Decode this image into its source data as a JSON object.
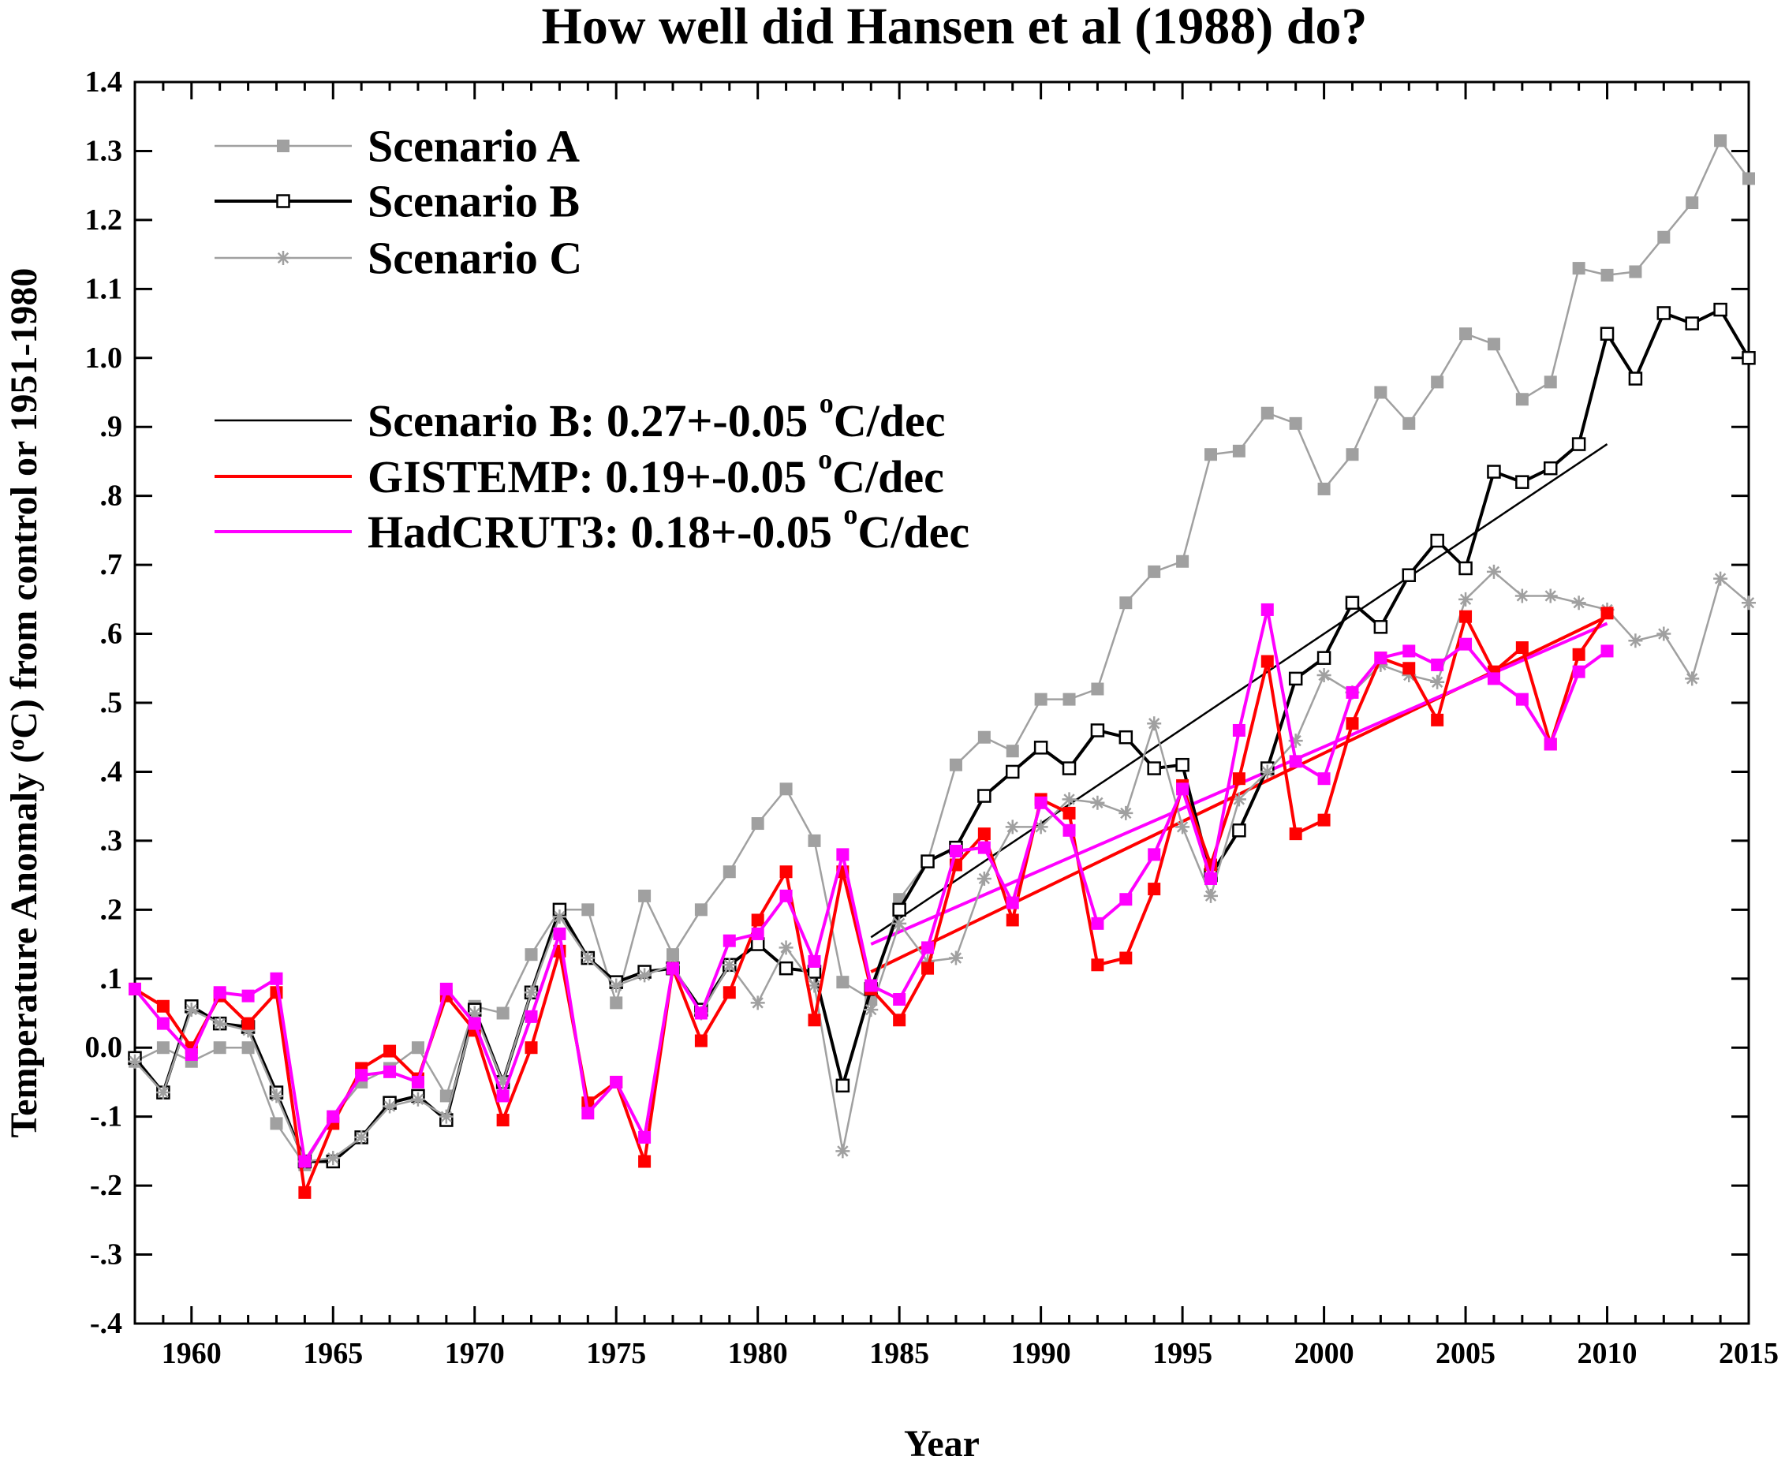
{
  "chart_data": {
    "type": "line",
    "title": "How well did Hansen et al (1988) do?",
    "xlabel": "Year",
    "ylabel_parts": [
      "Temperature Anomaly (",
      "o",
      "C) from control or 1951-1980"
    ],
    "xlim": [
      1958,
      2015
    ],
    "ylim": [
      -0.4,
      1.4
    ],
    "x_ticks": [
      1960,
      1965,
      1970,
      1975,
      1980,
      1985,
      1990,
      1995,
      2000,
      2005,
      2010,
      2015
    ],
    "x_tick_labels": [
      "1960",
      "1965",
      "1970",
      "1975",
      "1980",
      "1985",
      "1990",
      "1995",
      "2000",
      "2005",
      "2010",
      "2015"
    ],
    "y_ticks": [
      -0.4,
      -0.3,
      -0.2,
      -0.1,
      0.0,
      0.1,
      0.2,
      0.3,
      0.4,
      0.5,
      0.6,
      0.7,
      0.8,
      0.9,
      1.0,
      1.1,
      1.2,
      1.3,
      1.4
    ],
    "y_tick_labels": [
      "-.4",
      "-.3",
      "-.2",
      "-.1",
      "0.0",
      ".1",
      ".2",
      ".3",
      ".4",
      ".5",
      ".6",
      ".7",
      ".8",
      ".9",
      "1.0",
      "1.1",
      "1.2",
      "1.3",
      "1.4"
    ],
    "grid": false,
    "legend_position": "top-left",
    "series": [
      {
        "name": "Scenario A",
        "color": "#a0a0a0",
        "marker": "filled-square",
        "x": [
          1958,
          1959,
          1960,
          1961,
          1962,
          1963,
          1964,
          1965,
          1966,
          1967,
          1968,
          1969,
          1970,
          1971,
          1972,
          1973,
          1974,
          1975,
          1976,
          1977,
          1978,
          1979,
          1980,
          1981,
          1982,
          1983,
          1984,
          1985,
          1986,
          1987,
          1988,
          1989,
          1990,
          1991,
          1992,
          1993,
          1994,
          1995,
          1996,
          1997,
          1998,
          1999,
          2000,
          2001,
          2002,
          2003,
          2004,
          2005,
          2006,
          2007,
          2008,
          2009,
          2010,
          2011,
          2012,
          2013,
          2014,
          2015
        ],
        "y": [
          -0.02,
          0.0,
          -0.02,
          0.0,
          0.0,
          -0.11,
          -0.17,
          -0.1,
          -0.05,
          -0.03,
          0.0,
          -0.07,
          0.06,
          0.05,
          0.135,
          0.2,
          0.2,
          0.065,
          0.22,
          0.135,
          0.2,
          0.255,
          0.325,
          0.375,
          0.3,
          0.095,
          0.07,
          0.215,
          0.27,
          0.41,
          0.45,
          0.43,
          0.505,
          0.505,
          0.52,
          0.645,
          0.69,
          0.705,
          0.86,
          0.865,
          0.92,
          0.905,
          0.81,
          0.86,
          0.95,
          0.905,
          0.965,
          1.035,
          1.02,
          0.94,
          0.965,
          1.13,
          1.12,
          1.125,
          1.175,
          1.225,
          1.315,
          1.26
        ]
      },
      {
        "name": "Scenario B",
        "color": "#000000",
        "marker": "open-square",
        "x": [
          1958,
          1959,
          1960,
          1961,
          1962,
          1963,
          1964,
          1965,
          1966,
          1967,
          1968,
          1969,
          1970,
          1971,
          1972,
          1973,
          1974,
          1975,
          1976,
          1977,
          1978,
          1979,
          1980,
          1981,
          1982,
          1983,
          1984,
          1985,
          1986,
          1987,
          1988,
          1989,
          1990,
          1991,
          1992,
          1993,
          1994,
          1995,
          1996,
          1997,
          1998,
          1999,
          2000,
          2001,
          2002,
          2003,
          2004,
          2005,
          2006,
          2007,
          2008,
          2009,
          2010,
          2011,
          2012,
          2013,
          2014,
          2015
        ],
        "y": [
          -0.015,
          -0.065,
          0.06,
          0.035,
          0.03,
          -0.065,
          -0.165,
          -0.165,
          -0.13,
          -0.08,
          -0.07,
          -0.105,
          0.055,
          -0.05,
          0.08,
          0.2,
          0.13,
          0.095,
          0.11,
          0.115,
          0.055,
          0.12,
          0.15,
          0.115,
          0.11,
          -0.055,
          0.085,
          0.2,
          0.27,
          0.29,
          0.365,
          0.4,
          0.435,
          0.405,
          0.46,
          0.45,
          0.405,
          0.41,
          0.25,
          0.315,
          0.405,
          0.535,
          0.565,
          0.645,
          0.61,
          0.685,
          0.735,
          0.695,
          0.835,
          0.82,
          0.84,
          0.875,
          1.035,
          0.97,
          1.065,
          1.05,
          1.07,
          1.0
        ]
      },
      {
        "name": "Scenario C",
        "color": "#a0a0a0",
        "marker": "asterisk",
        "x": [
          1958,
          1959,
          1960,
          1961,
          1962,
          1963,
          1964,
          1965,
          1966,
          1967,
          1968,
          1969,
          1970,
          1971,
          1972,
          1973,
          1974,
          1975,
          1976,
          1977,
          1978,
          1979,
          1980,
          1981,
          1982,
          1983,
          1984,
          1985,
          1986,
          1987,
          1988,
          1989,
          1990,
          1991,
          1992,
          1993,
          1994,
          1995,
          1996,
          1997,
          1998,
          1999,
          2000,
          2001,
          2002,
          2003,
          2004,
          2005,
          2006,
          2007,
          2008,
          2009,
          2010,
          2011,
          2012,
          2013,
          2014,
          2015
        ],
        "y": [
          -0.02,
          -0.065,
          0.055,
          0.035,
          0.025,
          -0.07,
          -0.165,
          -0.16,
          -0.13,
          -0.085,
          -0.075,
          -0.1,
          0.05,
          -0.05,
          0.08,
          0.19,
          0.13,
          0.09,
          0.105,
          0.12,
          0.05,
          0.12,
          0.065,
          0.145,
          0.09,
          -0.15,
          0.055,
          0.18,
          0.125,
          0.13,
          0.245,
          0.32,
          0.32,
          0.36,
          0.355,
          0.34,
          0.47,
          0.32,
          0.22,
          0.36,
          0.4,
          0.445,
          0.54,
          0.515,
          0.555,
          0.54,
          0.53,
          0.65,
          0.69,
          0.655,
          0.655,
          0.645,
          0.635,
          0.59,
          0.6,
          0.535,
          0.68,
          0.645
        ]
      },
      {
        "name": "GISTEMP",
        "color": "#ff0000",
        "marker": "filled-square",
        "x": [
          1958,
          1959,
          1960,
          1961,
          1962,
          1963,
          1964,
          1965,
          1966,
          1967,
          1968,
          1969,
          1970,
          1971,
          1972,
          1973,
          1974,
          1975,
          1976,
          1977,
          1978,
          1979,
          1980,
          1981,
          1982,
          1983,
          1984,
          1985,
          1986,
          1987,
          1988,
          1989,
          1990,
          1991,
          1992,
          1993,
          1994,
          1995,
          1996,
          1997,
          1998,
          1999,
          2000,
          2001,
          2002,
          2003,
          2004,
          2005,
          2006,
          2007,
          2008,
          2009,
          2010
        ],
        "y": [
          0.085,
          0.06,
          0.0,
          0.075,
          0.035,
          0.08,
          -0.21,
          -0.11,
          -0.03,
          -0.005,
          -0.045,
          0.075,
          0.025,
          -0.105,
          0.0,
          0.14,
          -0.08,
          -0.05,
          -0.165,
          0.115,
          0.01,
          0.08,
          0.185,
          0.255,
          0.04,
          0.255,
          0.085,
          0.04,
          0.115,
          0.265,
          0.31,
          0.185,
          0.36,
          0.34,
          0.12,
          0.13,
          0.23,
          0.38,
          0.265,
          0.39,
          0.56,
          0.31,
          0.33,
          0.47,
          0.565,
          0.55,
          0.475,
          0.625,
          0.545,
          0.58,
          0.44,
          0.57,
          0.63
        ]
      },
      {
        "name": "HadCRUT3",
        "color": "#ff00ff",
        "marker": "filled-square",
        "x": [
          1958,
          1959,
          1960,
          1961,
          1962,
          1963,
          1964,
          1965,
          1966,
          1967,
          1968,
          1969,
          1970,
          1971,
          1972,
          1973,
          1974,
          1975,
          1976,
          1977,
          1978,
          1979,
          1980,
          1981,
          1982,
          1983,
          1984,
          1985,
          1986,
          1987,
          1988,
          1989,
          1990,
          1991,
          1992,
          1993,
          1994,
          1995,
          1996,
          1997,
          1998,
          1999,
          2000,
          2001,
          2002,
          2003,
          2004,
          2005,
          2006,
          2007,
          2008,
          2009,
          2010
        ],
        "y": [
          0.085,
          0.035,
          -0.01,
          0.08,
          0.075,
          0.1,
          -0.165,
          -0.1,
          -0.04,
          -0.035,
          -0.05,
          0.085,
          0.035,
          -0.07,
          0.045,
          0.165,
          -0.095,
          -0.05,
          -0.13,
          0.115,
          0.05,
          0.155,
          0.165,
          0.22,
          0.125,
          0.28,
          0.09,
          0.07,
          0.145,
          0.285,
          0.29,
          0.21,
          0.355,
          0.315,
          0.18,
          0.215,
          0.28,
          0.375,
          0.245,
          0.46,
          0.635,
          0.415,
          0.39,
          0.515,
          0.565,
          0.575,
          0.555,
          0.585,
          0.535,
          0.505,
          0.44,
          0.545,
          0.575
        ]
      }
    ],
    "trend_lines": [
      {
        "name": "Scenario B trend",
        "color": "#000000",
        "x": [
          1984,
          2010
        ],
        "y": [
          0.16,
          0.875
        ]
      },
      {
        "name": "GISTEMP trend",
        "color": "#ff0000",
        "x": [
          1984,
          2010
        ],
        "y": [
          0.11,
          0.625
        ]
      },
      {
        "name": "HadCRUT3 trend",
        "color": "#ff00ff",
        "x": [
          1984,
          2010
        ],
        "y": [
          0.15,
          0.615
        ]
      }
    ],
    "legend": {
      "series_entries": [
        "Scenario A",
        "Scenario B",
        "Scenario C"
      ],
      "trend_entries": [
        {
          "text_before": "Scenario B: 0.27+-0.05 ",
          "sup": "o",
          "text_after": "C/dec",
          "color": "#000000"
        },
        {
          "text_before": "GISTEMP: 0.19+-0.05 ",
          "sup": "o",
          "text_after": "C/dec",
          "color": "#ff0000"
        },
        {
          "text_before": "HadCRUT3: 0.18+-0.05 ",
          "sup": "o",
          "text_after": "C/dec",
          "color": "#ff00ff"
        }
      ]
    }
  }
}
